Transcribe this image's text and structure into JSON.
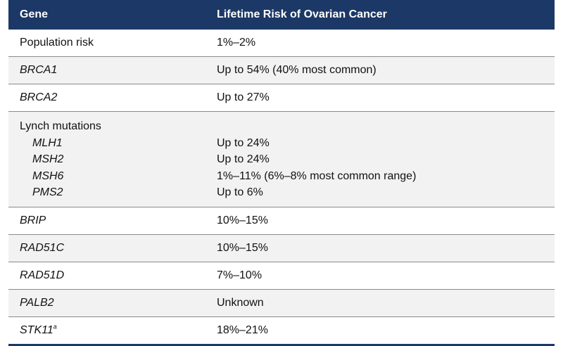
{
  "header": {
    "col_gene": "Gene",
    "col_risk": "Lifetime Risk of Ovarian Cancer"
  },
  "rows": [
    {
      "gene": "Population risk",
      "risk": "1%–2%",
      "italic": false
    },
    {
      "gene": "BRCA1",
      "risk": "Up to 54% (40% most common)",
      "italic": true
    },
    {
      "gene": "BRCA2",
      "risk": "Up to 27%",
      "italic": true
    },
    {
      "gene": "Lynch mutations",
      "risk": "",
      "italic": false,
      "sub": [
        {
          "gene": "MLH1",
          "risk": "Up to 24%"
        },
        {
          "gene": "MSH2",
          "risk": "Up to 24%"
        },
        {
          "gene": "MSH6",
          "risk": "1%–11% (6%–8% most common range)"
        },
        {
          "gene": "PMS2",
          "risk": "Up to 6%"
        }
      ]
    },
    {
      "gene": "BRIP",
      "risk": "10%–15%",
      "italic": true
    },
    {
      "gene": "RAD51C",
      "risk": "10%–15%",
      "italic": true
    },
    {
      "gene": "RAD51D",
      "risk": "7%–10%",
      "italic": true
    },
    {
      "gene": "PALB2",
      "risk": "Unknown",
      "italic": true
    },
    {
      "gene": "STK11",
      "gene_sup": "a",
      "risk": "18%–21%",
      "italic": true
    }
  ],
  "colors": {
    "header_bg": "#1b3866",
    "stripe": "#f2f2f2"
  }
}
